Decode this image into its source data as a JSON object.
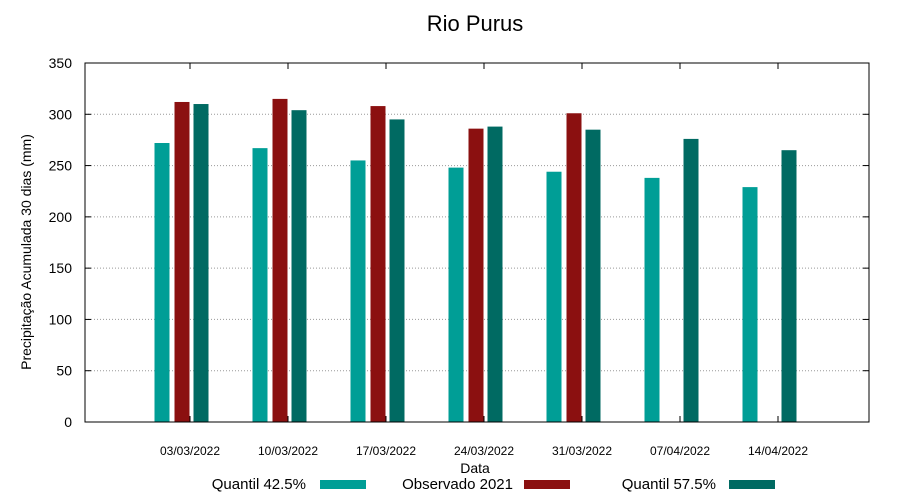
{
  "chart_data": {
    "type": "bar",
    "title": "Rio Purus",
    "xlabel": "Data",
    "ylabel": "Precipitação Acumulada 30 dias (mm)",
    "ylim": [
      0,
      350
    ],
    "yticks": [
      0,
      50,
      100,
      150,
      200,
      250,
      300,
      350
    ],
    "grid": true,
    "legend_position": "bottom",
    "categories": [
      "03/03/2022",
      "10/03/2022",
      "17/03/2022",
      "24/03/2022",
      "31/03/2022",
      "07/04/2022",
      "14/04/2022"
    ],
    "series": [
      {
        "name": "Quantil 42.5%",
        "color": "#009e96",
        "values": [
          272,
          267,
          255,
          248,
          244,
          238,
          229
        ]
      },
      {
        "name": "Observado 2021",
        "color": "#8b1010",
        "values": [
          312,
          315,
          308,
          286,
          301,
          null,
          null
        ]
      },
      {
        "name": "Quantil 57.5%",
        "color": "#006a62",
        "values": [
          310,
          304,
          295,
          288,
          285,
          276,
          265
        ]
      }
    ]
  }
}
